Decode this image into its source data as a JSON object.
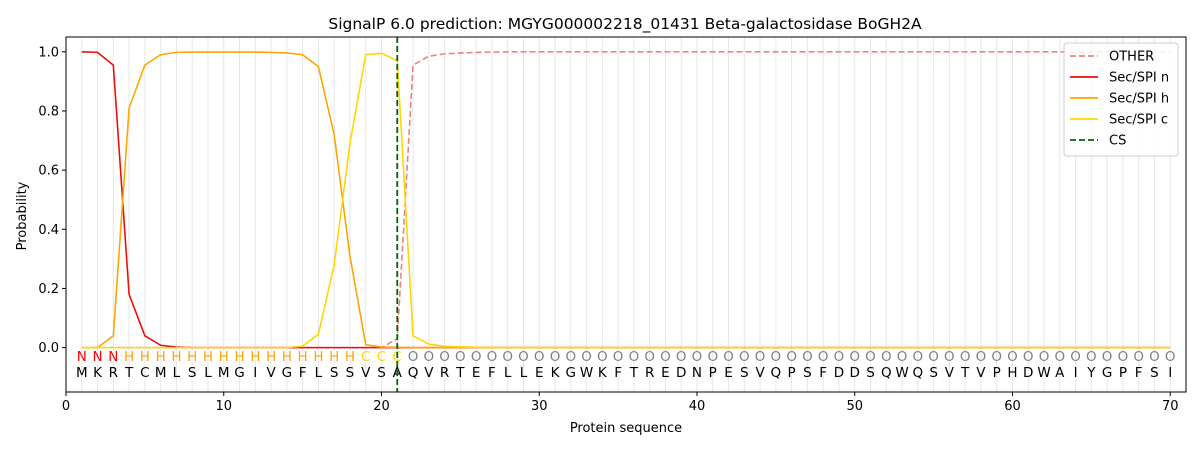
{
  "chart_data": {
    "type": "line",
    "title": "SignalP 6.0 prediction: MGYG000002218_01431 Beta-galactosidase BoGH2A",
    "xlabel": "Protein sequence",
    "ylabel": "Probability",
    "xlim": [
      0,
      71
    ],
    "ylim": [
      -0.15,
      1.05
    ],
    "xticks": [
      "0",
      "10",
      "20",
      "30",
      "40",
      "50",
      "60",
      "70"
    ],
    "yticks": [
      "0.0",
      "0.2",
      "0.4",
      "0.6",
      "0.8",
      "1.0"
    ],
    "grid": "vertical lines at each residue",
    "legend_position": "top-right",
    "cleavage_site": 21,
    "sequence": [
      "M",
      "K",
      "R",
      "T",
      "C",
      "M",
      "L",
      "S",
      "L",
      "M",
      "G",
      "I",
      "V",
      "G",
      "F",
      "L",
      "S",
      "S",
      "V",
      "S",
      "A",
      "Q",
      "V",
      "R",
      "T",
      "E",
      "F",
      "L",
      "L",
      "E",
      "K",
      "G",
      "W",
      "K",
      "F",
      "T",
      "R",
      "E",
      "D",
      "N",
      "P",
      "E",
      "S",
      "V",
      "Q",
      "P",
      "S",
      "F",
      "D",
      "D",
      "S",
      "Q",
      "W",
      "Q",
      "S",
      "V",
      "T",
      "V",
      "P",
      "H",
      "D",
      "W",
      "A",
      "I",
      "Y",
      "G",
      "P",
      "F",
      "S",
      "I"
    ],
    "labels": [
      "N",
      "N",
      "N",
      "H",
      "H",
      "H",
      "H",
      "H",
      "H",
      "H",
      "H",
      "H",
      "H",
      "H",
      "H",
      "H",
      "H",
      "H",
      "C",
      "C",
      "C",
      "O",
      "O",
      "O",
      "O",
      "O",
      "O",
      "O",
      "O",
      "O",
      "O",
      "O",
      "O",
      "O",
      "O",
      "O",
      "O",
      "O",
      "O",
      "O",
      "O",
      "O",
      "O",
      "O",
      "O",
      "O",
      "O",
      "O",
      "O",
      "O",
      "O",
      "O",
      "O",
      "O",
      "O",
      "O",
      "O",
      "O",
      "O",
      "O",
      "O",
      "O",
      "O",
      "O",
      "O",
      "O",
      "O",
      "O",
      "O",
      "O"
    ],
    "label_colors": {
      "N": "#ff0000",
      "H": "#ffa500",
      "C": "#ffd700",
      "O": "#808080"
    },
    "series": [
      {
        "name": "OTHER",
        "color": "#f08080",
        "dash": "dashed",
        "values": [
          0,
          0,
          0,
          0,
          0,
          0,
          0,
          0,
          0,
          0,
          0,
          0,
          0,
          0,
          0,
          0,
          0,
          0,
          0,
          0,
          0.03,
          0.955,
          0.985,
          0.993,
          0.996,
          0.998,
          0.999,
          1,
          1,
          1,
          1,
          1,
          1,
          1,
          1,
          1,
          1,
          1,
          1,
          1,
          1,
          1,
          1,
          1,
          1,
          1,
          1,
          1,
          1,
          1,
          1,
          1,
          1,
          1,
          1,
          1,
          1,
          1,
          1,
          1,
          1,
          1,
          1,
          1,
          1,
          1,
          1,
          1,
          1,
          1
        ]
      },
      {
        "name": "Sec/SPI n",
        "color": "#e8100c",
        "dash": "solid",
        "values": [
          1.0,
          0.998,
          0.955,
          0.18,
          0.04,
          0.008,
          0.002,
          0,
          0,
          0,
          0,
          0,
          0,
          0,
          0,
          0,
          0,
          0,
          0,
          0,
          0,
          0,
          0,
          0,
          0,
          0,
          0,
          0,
          0,
          0,
          0,
          0,
          0,
          0,
          0,
          0,
          0,
          0,
          0,
          0,
          0,
          0,
          0,
          0,
          0,
          0,
          0,
          0,
          0,
          0,
          0,
          0,
          0,
          0,
          0,
          0,
          0,
          0,
          0,
          0,
          0,
          0,
          0,
          0,
          0,
          0,
          0,
          0,
          0,
          0
        ]
      },
      {
        "name": "Sec/SPI h",
        "color": "#ffa500",
        "dash": "solid",
        "values": [
          0,
          0,
          0.04,
          0.81,
          0.955,
          0.99,
          0.998,
          0.999,
          0.999,
          0.999,
          0.999,
          0.999,
          0.998,
          0.996,
          0.99,
          0.95,
          0.72,
          0.31,
          0.01,
          0.002,
          0.001,
          0,
          0,
          0,
          0,
          0,
          0,
          0,
          0,
          0,
          0,
          0,
          0,
          0,
          0,
          0,
          0,
          0,
          0,
          0,
          0,
          0,
          0,
          0,
          0,
          0,
          0,
          0,
          0,
          0,
          0,
          0,
          0,
          0,
          0,
          0,
          0,
          0,
          0,
          0,
          0,
          0,
          0,
          0,
          0,
          0,
          0,
          0,
          0,
          0
        ]
      },
      {
        "name": "Sec/SPI c",
        "color": "#ffd700",
        "dash": "solid",
        "values": [
          0,
          0,
          0,
          0,
          0,
          0,
          0,
          0,
          0,
          0,
          0,
          0,
          0,
          0,
          0.005,
          0.045,
          0.28,
          0.69,
          0.99,
          0.995,
          0.97,
          0.04,
          0.012,
          0.005,
          0.003,
          0.001,
          0,
          0,
          0,
          0,
          0,
          0,
          0,
          0,
          0,
          0,
          0,
          0,
          0,
          0,
          0,
          0,
          0,
          0,
          0,
          0,
          0,
          0,
          0,
          0,
          0,
          0,
          0,
          0,
          0,
          0,
          0,
          0,
          0,
          0,
          0,
          0,
          0,
          0,
          0,
          0,
          0,
          0,
          0,
          0
        ]
      }
    ],
    "legend": [
      {
        "name": "OTHER",
        "color": "#f08080",
        "dash": "dashed"
      },
      {
        "name": "Sec/SPI n",
        "color": "#e8100c",
        "dash": "solid"
      },
      {
        "name": "Sec/SPI h",
        "color": "#ffa500",
        "dash": "solid"
      },
      {
        "name": "Sec/SPI c",
        "color": "#ffd700",
        "dash": "solid"
      },
      {
        "name": "CS",
        "color": "#006400",
        "dash": "dashed"
      }
    ]
  }
}
